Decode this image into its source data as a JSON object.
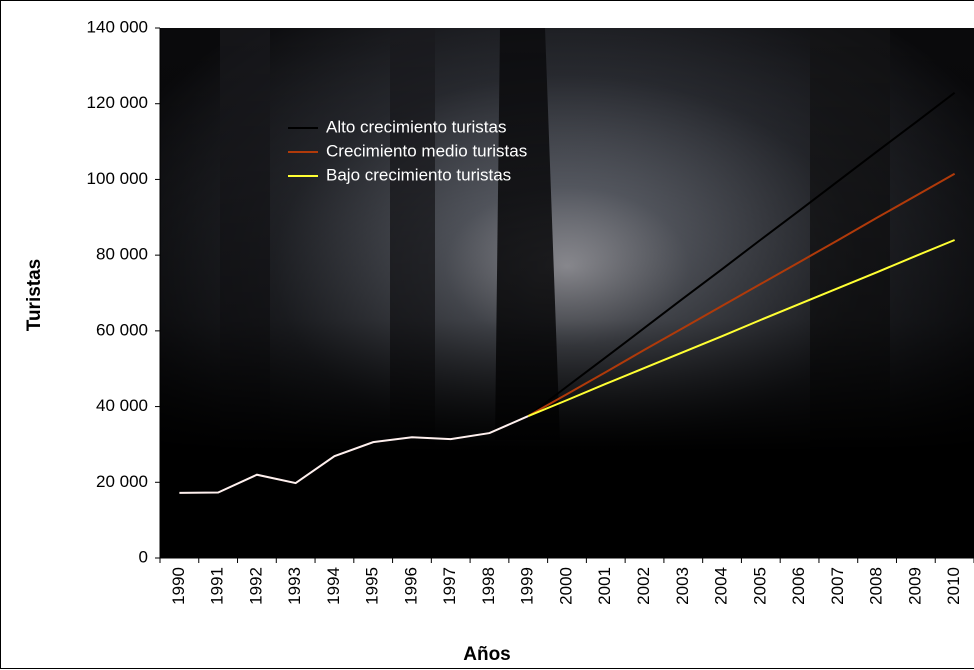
{
  "chart_data": {
    "type": "line",
    "xlabel": "Años",
    "ylabel": "Turistas",
    "categories": [
      "1990",
      "1991",
      "1992",
      "1993",
      "1994",
      "1995",
      "1996",
      "1997",
      "1998",
      "1999",
      "2000",
      "2001",
      "2002",
      "2003",
      "2004",
      "2005",
      "2006",
      "2007",
      "2008",
      "2009",
      "2010"
    ],
    "series": [
      {
        "color": "#fff0ee",
        "values": [
          17200,
          17300,
          22000,
          19800,
          26900,
          30600,
          31900,
          31400,
          33000,
          37500,
          null,
          null,
          null,
          null,
          null,
          null,
          null,
          null,
          null,
          null,
          null
        ]
      },
      {
        "name": "Alto crecimiento turistas",
        "color": "#000000",
        "values": [
          null,
          null,
          null,
          null,
          null,
          null,
          null,
          null,
          null,
          37500,
          45300,
          53000,
          60800,
          68600,
          76300,
          84100,
          91800,
          99600,
          107400,
          115100,
          122900
        ]
      },
      {
        "name": "Crecimiento medio turistas",
        "color": "#b03a0a",
        "values": [
          null,
          null,
          null,
          null,
          null,
          null,
          null,
          null,
          null,
          37500,
          43300,
          49100,
          55000,
          60800,
          66600,
          72400,
          78200,
          84000,
          89900,
          95700,
          101500
        ]
      },
      {
        "name": "Bajo crecimiento turistas",
        "color": "#ffff33",
        "values": [
          null,
          null,
          null,
          null,
          null,
          null,
          null,
          null,
          null,
          37500,
          41700,
          46000,
          50200,
          54400,
          58600,
          62900,
          67100,
          71300,
          75500,
          79800,
          84000
        ]
      }
    ],
    "ylim": [
      0,
      140000
    ],
    "yticks": [
      0,
      {
        "value": 20000,
        "label": "20 000"
      },
      {
        "value": 40000,
        "label": "40 000"
      },
      {
        "value": 60000,
        "label": "60 000"
      },
      {
        "value": 80000,
        "label": "80 000"
      },
      {
        "value": 100000,
        "label": "100 000"
      },
      {
        "value": 120000,
        "label": "120 000"
      },
      {
        "value": 140000,
        "label": "140 000"
      }
    ],
    "legend": "upper-left"
  }
}
